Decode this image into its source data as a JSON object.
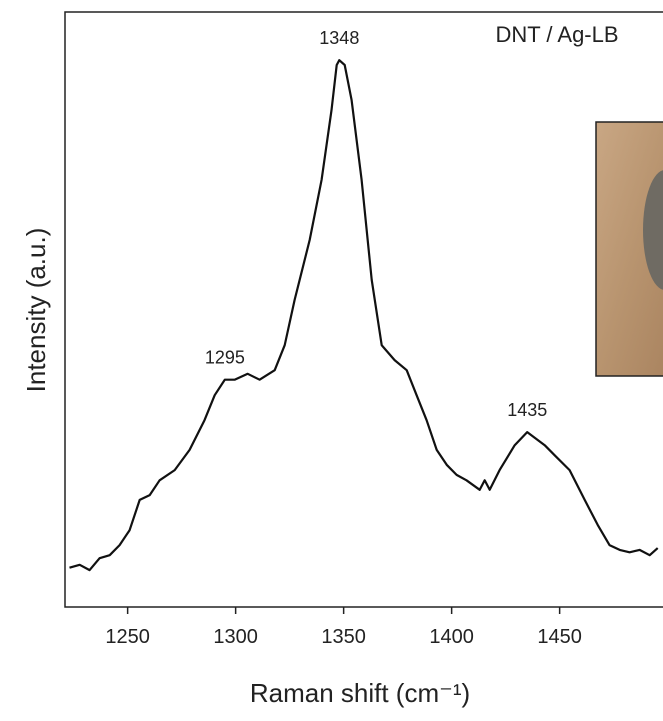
{
  "chart_data": {
    "type": "line",
    "title": "DNT / Ag-LB",
    "xlabel": "Intensity (a.u.)",
    "ylabel": "Raman shift (cm⁻¹)",
    "xlim": [
      1221,
      1498
    ],
    "xticks": [
      1250,
      1300,
      1350,
      1400,
      1450
    ],
    "ylim": [
      0,
      100
    ],
    "series": [
      {
        "color": "#111111",
        "x": [
          1223.1,
          1227.8,
          1232.4,
          1237.0,
          1241.7,
          1246.3,
          1250.9,
          1255.6,
          1260.2,
          1264.8,
          1271.8,
          1278.7,
          1285.6,
          1290.3,
          1295,
          1299.5,
          1305.6,
          1311.1,
          1318.1,
          1322.7,
          1327.3,
          1334.3,
          1339.8,
          1344.4,
          1346.8,
          1348,
          1350.5,
          1353.7,
          1358.3,
          1363.0,
          1367.6,
          1373.6,
          1379.2,
          1383.8,
          1388.4,
          1393.1,
          1397.7,
          1402.3,
          1406.9,
          1413.0,
          1415.3,
          1417.6,
          1422.2,
          1429.2,
          1435,
          1443.1,
          1447.7,
          1454.6,
          1461.6,
          1467.6,
          1473.1,
          1477.8,
          1482.4,
          1487.0,
          1491.7,
          1495.4
        ],
        "values": [
          6.6,
          7.1,
          6.2,
          8.2,
          8.7,
          10.4,
          12.9,
          18.0,
          18.8,
          21.3,
          23.0,
          26.4,
          31.4,
          35.6,
          38.2,
          38.2,
          39.2,
          38.2,
          39.8,
          44.0,
          51.6,
          61.7,
          71.8,
          83.5,
          91.1,
          91.9,
          91.1,
          85.2,
          71.8,
          55.0,
          44.0,
          41.5,
          39.8,
          35.6,
          31.4,
          26.4,
          23.9,
          22.2,
          21.3,
          19.7,
          21.3,
          19.7,
          23.0,
          27.2,
          29.4,
          27.2,
          25.5,
          23.0,
          18.0,
          13.8,
          10.4,
          9.6,
          9.2,
          9.6,
          8.7,
          9.9
        ]
      }
    ],
    "annotations": [
      {
        "text": "1348",
        "x": 1348,
        "y": 91.9
      },
      {
        "text": "1295",
        "x": 1295,
        "y": 38.2
      },
      {
        "text": "1435",
        "x": 1435,
        "y": 29.4
      }
    ]
  }
}
